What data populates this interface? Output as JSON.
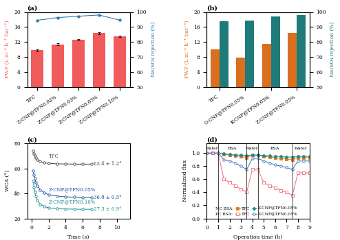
{
  "chart_data": [
    {
      "type": "bar",
      "title": "(a)",
      "categories": [
        "TFC",
        "Z-CNF@TFN0.02%",
        "Z-CNF@TFN0.03%",
        "Z-CNF@TFN0.05%",
        "Z-CNF@TFN0.10%"
      ],
      "y_label": "PWP (L m⁻² h⁻¹ bar⁻¹)",
      "y2_label": "Na₂SO₄ rejection (%)",
      "ylim": [
        0,
        20
      ],
      "yticks": [
        0,
        4,
        8,
        12,
        16,
        20
      ],
      "y2lim": [
        50,
        100
      ],
      "y2ticks": [
        50,
        60,
        70,
        80,
        90,
        100
      ],
      "series": [
        {
          "type": "bar",
          "color": "#f15b5b",
          "values": [
            9.8,
            11.4,
            12.6,
            14.4,
            13.5
          ],
          "errors": [
            0.3,
            0.2,
            0.2,
            0.3,
            0.2
          ]
        },
        {
          "type": "line",
          "axis": "y2",
          "color": "#2a7ab0",
          "marker": "circle",
          "line_style": "solid",
          "values": [
            94.5,
            96.3,
            97.2,
            98.0,
            94.6
          ]
        }
      ]
    },
    {
      "type": "bar",
      "title": "(b)",
      "categories": [
        "TFC",
        "O-CNF@TFN0.05%",
        "K-CNF@TFN0.05%",
        "Z-CNF@TFN0.05%"
      ],
      "y_label": "PWP (L m⁻² h⁻¹ bar⁻¹)",
      "y2_label": "Na₂SO₄ rejection (%)",
      "ylim": [
        0,
        20
      ],
      "yticks": [
        0,
        4,
        8,
        12,
        16,
        20
      ],
      "y2lim": [
        50,
        100
      ],
      "y2ticks": [
        50,
        60,
        70,
        80,
        90,
        100
      ],
      "series": [
        {
          "type": "bar",
          "color": "#d9701f",
          "values": [
            10.0,
            7.8,
            11.5,
            14.4
          ]
        },
        {
          "type": "bar",
          "axis": "y2",
          "color": "#1f7a7a",
          "values": [
            94.0,
            94.3,
            97.0,
            98.0
          ]
        }
      ]
    },
    {
      "type": "line",
      "title": "(c)",
      "x_label": "Time (s)",
      "y_label": "WCA (°)",
      "xlim": [
        -0.5,
        11.5
      ],
      "xticks": [
        0,
        2,
        4,
        6,
        8,
        10
      ],
      "ylim": [
        20,
        80
      ],
      "yticks": [
        20,
        40,
        60,
        80
      ],
      "x": [
        0.2,
        0.3,
        0.4,
        0.5,
        0.7,
        1,
        1.5,
        2,
        3,
        4,
        5,
        6,
        7
      ],
      "series": [
        {
          "name": "TFC",
          "color": "#404040",
          "marker": "open circle",
          "line_style": "solid",
          "annotation": "63.4 ± 1.2°",
          "values": [
            74,
            72,
            70,
            68.5,
            67,
            65.5,
            64.5,
            64,
            63.6,
            63.5,
            63.4,
            63.4,
            63.4
          ]
        },
        {
          "name": "Z-CNF@TFN0.05%",
          "color": "#1f4e9c",
          "marker": "open circle",
          "line_style": "solid",
          "annotation": "36.8 ± 0.5°",
          "values": [
            58,
            55,
            52,
            49,
            46,
            43,
            40.5,
            39,
            37.8,
            37.2,
            37,
            36.8,
            36.8
          ]
        },
        {
          "name": "Z-CNF@TFN0.10%",
          "color": "#1a8a8a",
          "marker": "open circle",
          "line_style": "solid",
          "annotation": "27.3 ± 0.9°",
          "values": [
            50,
            45,
            41,
            38,
            34.5,
            31.5,
            29.5,
            28.5,
            27.8,
            27.5,
            27.4,
            27.3,
            27.3
          ]
        }
      ]
    },
    {
      "type": "line",
      "title": "(d)",
      "x_label": "Operation time (h)",
      "y_label": "Normalized flux",
      "xlim": [
        0,
        9
      ],
      "xticks": [
        0,
        1,
        2,
        3,
        4,
        5,
        6,
        7,
        8,
        9
      ],
      "ylim": [
        0,
        1.15
      ],
      "yticks": [
        0.0,
        0.2,
        0.4,
        0.6,
        0.8,
        1.0
      ],
      "legend": "lower left",
      "phases": [
        {
          "label": "Water",
          "start": 0,
          "end": 1
        },
        {
          "label": "BSA",
          "start": 1,
          "end": 3.5
        },
        {
          "label": "Water",
          "start": 3.5,
          "end": 4.5
        },
        {
          "label": "BSA",
          "start": 4.5,
          "end": 7.5
        },
        {
          "label": "Water",
          "start": 7.5,
          "end": 9
        }
      ],
      "x": [
        0,
        0.5,
        1,
        1.5,
        2,
        2.5,
        3,
        3.5,
        4,
        4.5,
        5,
        5.5,
        6,
        6.5,
        7,
        7.5,
        8,
        8.5,
        9
      ],
      "series": [
        {
          "group": "NC BSA:",
          "name": "TFC",
          "color": "#e8741c",
          "marker": "square",
          "line_style": "solid",
          "values": [
            1,
            1,
            1,
            0.98,
            0.97,
            0.96,
            0.95,
            0.93,
            0.97,
            0.97,
            0.95,
            0.94,
            0.93,
            0.92,
            0.91,
            0.9,
            0.93,
            0.93,
            0.93
          ]
        },
        {
          "group": "NC BSA:",
          "name": "Z-CNF@TFN0.05%",
          "color": "#1e8c8c",
          "marker": "diamond",
          "line_style": "solid",
          "values": [
            1,
            1,
            1,
            0.99,
            0.98,
            0.97,
            0.97,
            0.96,
            0.97,
            0.97,
            0.96,
            0.96,
            0.95,
            0.95,
            0.94,
            0.94,
            0.95,
            0.95,
            0.95
          ]
        },
        {
          "group": "PC BSA:",
          "name": "TFC",
          "color": "#f06a7a",
          "marker": "open square",
          "line_style": "solid",
          "values": [
            1,
            1,
            1,
            0.6,
            0.55,
            0.5,
            0.45,
            0.4,
            0.75,
            0.75,
            0.55,
            0.5,
            0.47,
            0.43,
            0.4,
            0.35,
            0.7,
            0.7,
            0.7
          ]
        },
        {
          "group": "PC BSA:",
          "name": "Z-CNF@TFN0.05%",
          "color": "#3a6fb5",
          "marker": "open circle",
          "line_style": "solid",
          "values": [
            1,
            1,
            1,
            0.9,
            0.88,
            0.85,
            0.8,
            0.75,
            0.92,
            0.92,
            0.88,
            0.85,
            0.82,
            0.8,
            0.78,
            0.75,
            0.88,
            0.88,
            0.88
          ]
        }
      ]
    }
  ]
}
